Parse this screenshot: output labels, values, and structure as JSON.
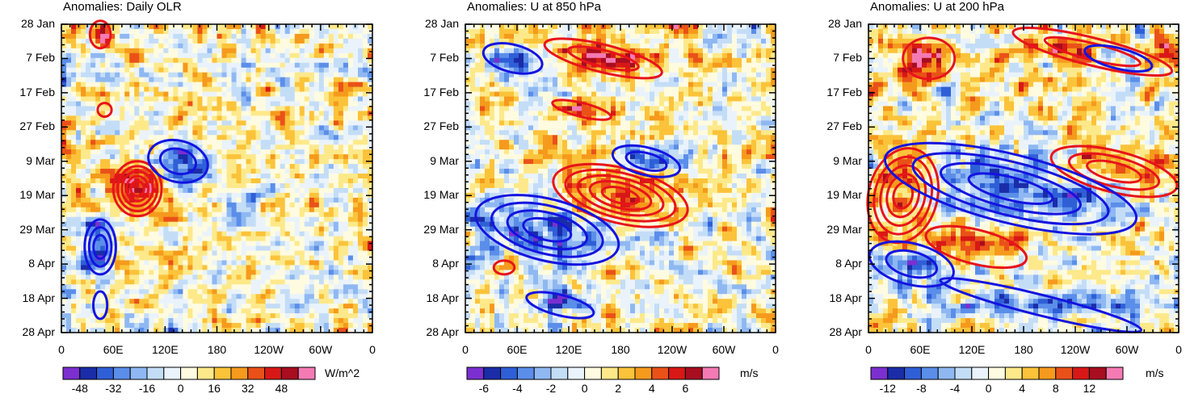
{
  "chart_data": [
    {
      "type": "heatmap",
      "title": "Anomalies: Daily OLR",
      "x_ticks": [
        "0",
        "60E",
        "120E",
        "180",
        "120W",
        "60W",
        "0"
      ],
      "y_ticks": [
        "28 Jan",
        "7 Feb",
        "17 Feb",
        "27 Feb",
        "9 Mar",
        "19 Mar",
        "29 Mar",
        "8 Apr",
        "18 Apr",
        "28 Apr"
      ],
      "colorbar_labels": [
        "-48",
        "-32",
        "-16",
        "0",
        "16",
        "32",
        "48"
      ],
      "colorbar_min": -60,
      "colorbar_max": 60,
      "units": "W/m^2",
      "contours_red": [
        {
          "lon": 88,
          "day": 48,
          "rlon": 28,
          "rday": 8,
          "levels": 5
        },
        {
          "lon": 45,
          "day": 3,
          "rlon": 12,
          "rday": 4,
          "levels": 1
        },
        {
          "lon": 50,
          "day": 25,
          "rlon": 8,
          "rday": 2,
          "levels": 1
        }
      ],
      "contours_blue": [
        {
          "lon": 135,
          "day": 40,
          "rlon": 35,
          "rday": 6,
          "levels": 2
        },
        {
          "lon": 45,
          "day": 65,
          "rlon": 18,
          "rday": 8,
          "levels": 3
        },
        {
          "lon": 45,
          "day": 82,
          "rlon": 8,
          "rday": 4,
          "levels": 1
        }
      ]
    },
    {
      "type": "heatmap",
      "title": "Anomalies: U at 850 hPa",
      "x_ticks": [
        "0",
        "60E",
        "120E",
        "180",
        "120W",
        "60W",
        "0"
      ],
      "y_ticks": [
        "28 Jan",
        "7 Feb",
        "17 Feb",
        "27 Feb",
        "9 Mar",
        "19 Mar",
        "29 Mar",
        "8 Apr",
        "18 Apr",
        "28 Apr"
      ],
      "colorbar_labels": [
        "-6",
        "-4",
        "-2",
        "0",
        "2",
        "4",
        "6"
      ],
      "colorbar_min": -8,
      "colorbar_max": 8,
      "units": "m/s",
      "contours_red": [
        {
          "lon": 180,
          "day": 50,
          "rlon": 80,
          "rday": 8,
          "levels": 5
        },
        {
          "lon": 160,
          "day": 10,
          "rlon": 70,
          "rday": 4,
          "levels": 2
        },
        {
          "lon": 135,
          "day": 25,
          "rlon": 35,
          "rday": 2,
          "levels": 1
        },
        {
          "lon": 45,
          "day": 71,
          "rlon": 12,
          "rday": 2,
          "levels": 1
        }
      ],
      "contours_blue": [
        {
          "lon": 95,
          "day": 60,
          "rlon": 85,
          "rday": 9,
          "levels": 4
        },
        {
          "lon": 210,
          "day": 40,
          "rlon": 40,
          "rday": 4,
          "levels": 2
        },
        {
          "lon": 55,
          "day": 10,
          "rlon": 35,
          "rday": 4,
          "levels": 1
        },
        {
          "lon": 110,
          "day": 82,
          "rlon": 40,
          "rday": 3,
          "levels": 1
        }
      ]
    },
    {
      "type": "heatmap",
      "title": "Anomalies: U at 200 hPa",
      "x_ticks": [
        "0",
        "60E",
        "120E",
        "180",
        "120W",
        "60W",
        "0"
      ],
      "y_ticks": [
        "28 Jan",
        "7 Feb",
        "17 Feb",
        "27 Feb",
        "9 Mar",
        "19 Mar",
        "29 Mar",
        "8 Apr",
        "18 Apr",
        "28 Apr"
      ],
      "colorbar_labels": [
        "-12",
        "-8",
        "-4",
        "0",
        "4",
        "8",
        "12"
      ],
      "colorbar_min": -16,
      "colorbar_max": 16,
      "units": "m/s",
      "contours_red": [
        {
          "lon": 40,
          "day": 50,
          "rlon": 40,
          "rday": 14,
          "levels": 5
        },
        {
          "lon": 285,
          "day": 43,
          "rlon": 75,
          "rday": 6,
          "levels": 3
        },
        {
          "lon": 260,
          "day": 8,
          "rlon": 95,
          "rday": 4,
          "levels": 2
        },
        {
          "lon": 70,
          "day": 10,
          "rlon": 30,
          "rday": 6,
          "levels": 1
        },
        {
          "lon": 125,
          "day": 65,
          "rlon": 60,
          "rday": 5,
          "levels": 1
        }
      ],
      "contours_blue": [
        {
          "lon": 165,
          "day": 48,
          "rlon": 150,
          "rday": 10,
          "levels": 4
        },
        {
          "lon": 50,
          "day": 70,
          "rlon": 50,
          "rday": 6,
          "levels": 2
        },
        {
          "lon": 290,
          "day": 10,
          "rlon": 40,
          "rday": 3,
          "levels": 1
        },
        {
          "lon": 200,
          "day": 82,
          "rlon": 120,
          "rday": 3,
          "levels": 1
        }
      ]
    }
  ]
}
